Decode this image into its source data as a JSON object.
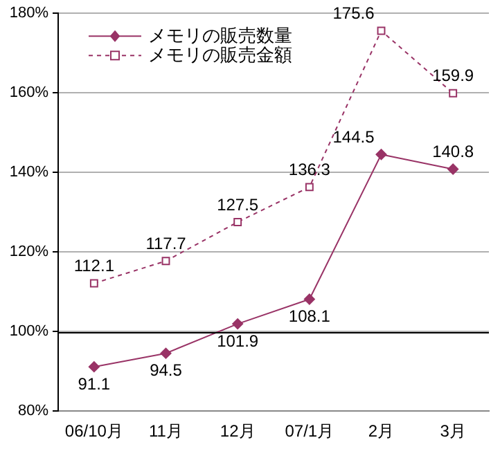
{
  "chart_data": {
    "type": "line",
    "categories": [
      "06/10月",
      "11月",
      "12月",
      "07/1月",
      "2月",
      "3月"
    ],
    "series": [
      {
        "name": "メモリの販売数量",
        "color": "#993366",
        "values": [
          91.1,
          94.5,
          101.9,
          108.1,
          144.5,
          140.8
        ],
        "marker": "diamond",
        "line_style": "solid"
      },
      {
        "name": "メモリの販売金額",
        "color": "#993366",
        "values": [
          112.1,
          117.7,
          127.5,
          136.3,
          175.6,
          159.9
        ],
        "marker": "square",
        "line_style": "dashed"
      }
    ],
    "ylim": [
      80,
      180
    ],
    "yticks": [
      {
        "value": 80,
        "label": "80%"
      },
      {
        "value": 100,
        "label": "100%"
      },
      {
        "value": 120,
        "label": "120%"
      },
      {
        "value": 140,
        "label": "140%"
      },
      {
        "value": 160,
        "label": "160%"
      },
      {
        "value": 180,
        "label": "180%"
      }
    ],
    "ref_lines": [
      {
        "axis": "y",
        "value": 100,
        "color": "#000000"
      }
    ],
    "grid": "y",
    "legend": "top left",
    "data_labels": true
  }
}
